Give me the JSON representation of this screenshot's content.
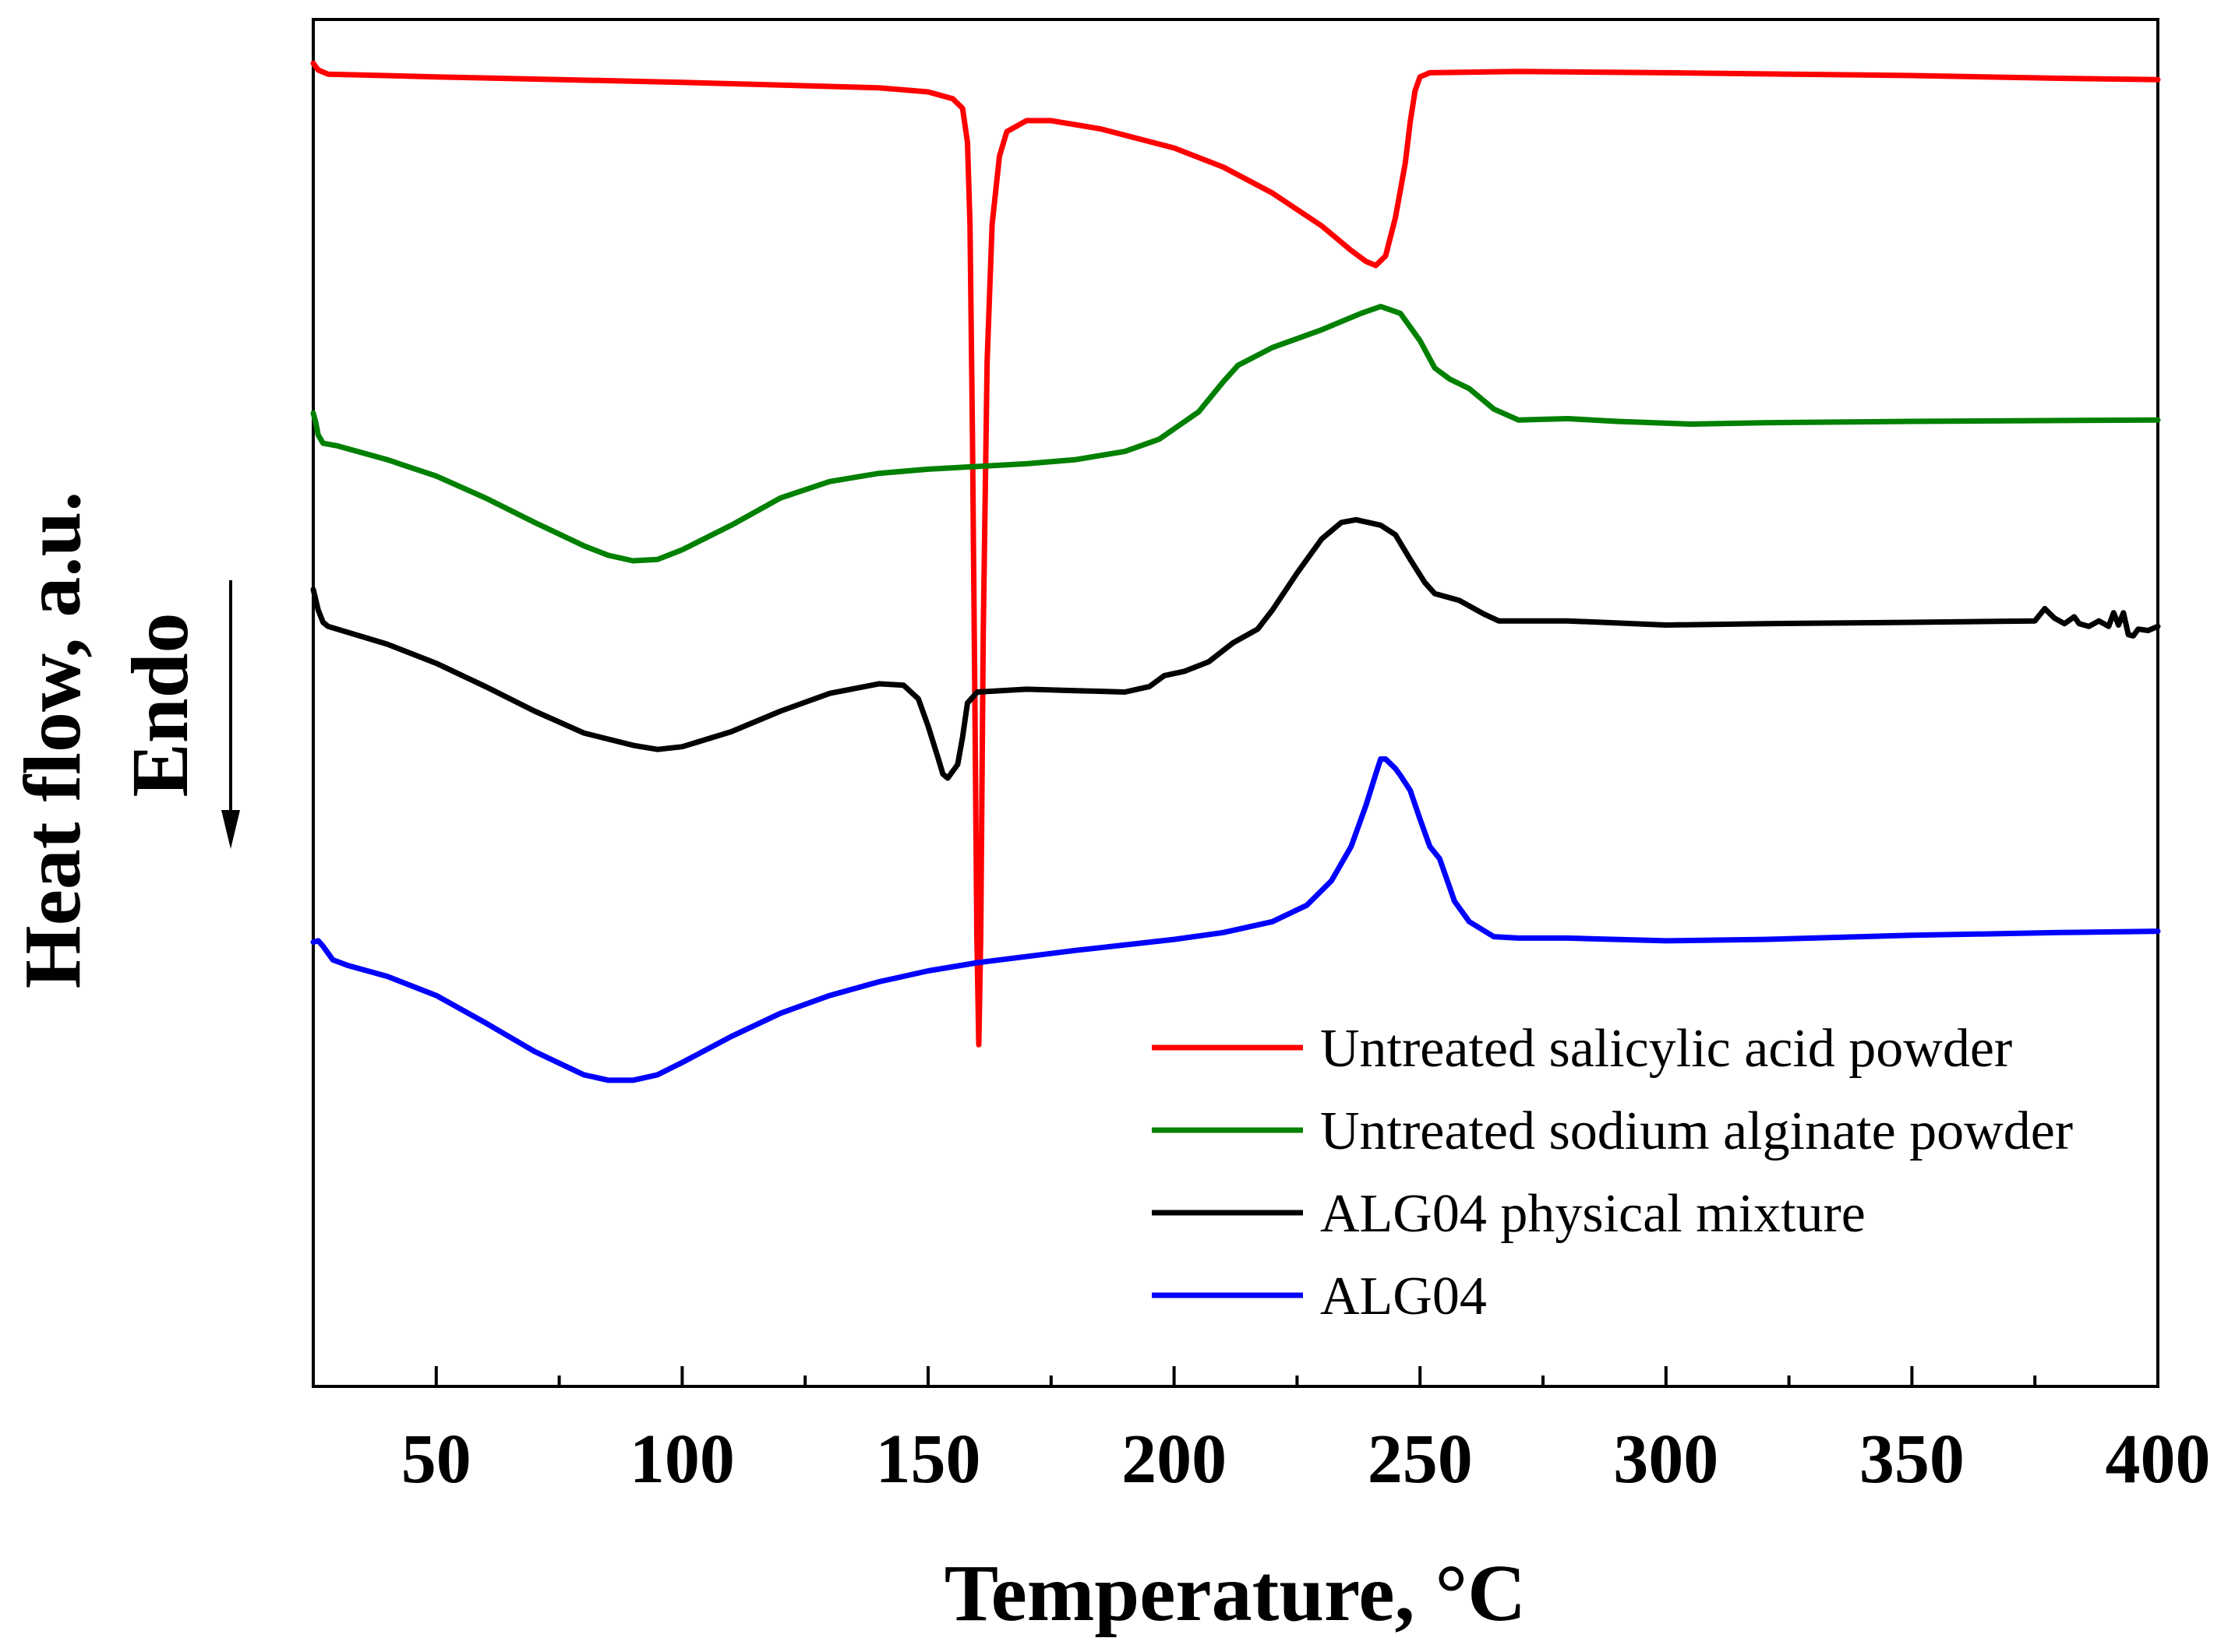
{
  "chart_data": {
    "type": "line",
    "title": "",
    "xlabel": "Temperature, °C",
    "ylabel": "Heat flow, a.u.",
    "ylabel_secondary": "Endo",
    "xlim": [
      25,
      400
    ],
    "xticks": [
      50,
      100,
      150,
      200,
      250,
      300,
      350,
      400
    ],
    "xtick_labels": [
      "50",
      "100",
      "150",
      "200",
      "250",
      "300",
      "350",
      "400"
    ],
    "x_minor_ticks": [
      75,
      125,
      175,
      225,
      275,
      325,
      375
    ],
    "ylim": [
      0,
      100
    ],
    "y_ticks_shown": false,
    "grid": false,
    "legend_position": "bottom-right",
    "endo_arrow": "down",
    "series": [
      {
        "name": "Untreated salicylic acid powder",
        "color": "#ff0000",
        "points": [
          [
            25,
            96.8
          ],
          [
            26,
            96.3
          ],
          [
            28,
            96.0
          ],
          [
            50,
            95.8
          ],
          [
            100,
            95.4
          ],
          [
            140,
            95.0
          ],
          [
            150,
            94.7
          ],
          [
            155,
            94.2
          ],
          [
            157,
            93.5
          ],
          [
            158,
            91.0
          ],
          [
            158.5,
            85.0
          ],
          [
            159,
            70.0
          ],
          [
            159.5,
            50.0
          ],
          [
            159.9,
            33.0
          ],
          [
            160.3,
            25.0
          ],
          [
            160.7,
            33.0
          ],
          [
            161.2,
            55.0
          ],
          [
            162,
            75.0
          ],
          [
            163,
            85.0
          ],
          [
            164.5,
            90.0
          ],
          [
            166,
            91.8
          ],
          [
            170,
            92.6
          ],
          [
            175,
            92.6
          ],
          [
            185,
            92.0
          ],
          [
            200,
            90.6
          ],
          [
            210,
            89.2
          ],
          [
            220,
            87.3
          ],
          [
            230,
            84.9
          ],
          [
            236,
            83.1
          ],
          [
            239,
            82.3
          ],
          [
            241,
            82.0
          ],
          [
            243,
            82.7
          ],
          [
            245,
            85.5
          ],
          [
            247,
            89.5
          ],
          [
            248,
            92.5
          ],
          [
            249,
            94.8
          ],
          [
            250,
            95.8
          ],
          [
            252,
            96.1
          ],
          [
            270,
            96.2
          ],
          [
            300,
            96.1
          ],
          [
            350,
            95.9
          ],
          [
            380,
            95.7
          ],
          [
            400,
            95.6
          ]
        ]
      },
      {
        "name": "Untreated sodium alginate powder",
        "color": "#008000",
        "points": [
          [
            25,
            71.2
          ],
          [
            25.5,
            70.5
          ],
          [
            26,
            69.6
          ],
          [
            27,
            69.0
          ],
          [
            30,
            68.8
          ],
          [
            40,
            67.8
          ],
          [
            50,
            66.6
          ],
          [
            60,
            65.0
          ],
          [
            70,
            63.2
          ],
          [
            80,
            61.5
          ],
          [
            85,
            60.8
          ],
          [
            90,
            60.4
          ],
          [
            95,
            60.5
          ],
          [
            100,
            61.2
          ],
          [
            110,
            63.0
          ],
          [
            120,
            65.0
          ],
          [
            130,
            66.2
          ],
          [
            140,
            66.8
          ],
          [
            150,
            67.1
          ],
          [
            160,
            67.3
          ],
          [
            170,
            67.5
          ],
          [
            180,
            67.8
          ],
          [
            190,
            68.4
          ],
          [
            197,
            69.3
          ],
          [
            205,
            71.3
          ],
          [
            210,
            73.5
          ],
          [
            213,
            74.7
          ],
          [
            220,
            76.0
          ],
          [
            230,
            77.3
          ],
          [
            238,
            78.5
          ],
          [
            242,
            79.0
          ],
          [
            246,
            78.5
          ],
          [
            250,
            76.5
          ],
          [
            253,
            74.5
          ],
          [
            256,
            73.7
          ],
          [
            260,
            73.0
          ],
          [
            265,
            71.5
          ],
          [
            270,
            70.7
          ],
          [
            280,
            70.8
          ],
          [
            290,
            70.6
          ],
          [
            305,
            70.4
          ],
          [
            320,
            70.5
          ],
          [
            350,
            70.6
          ],
          [
            400,
            70.7
          ]
        ]
      },
      {
        "name": "ALG04 physical mixture",
        "color": "#000000",
        "points": [
          [
            25,
            58.3
          ],
          [
            26,
            56.8
          ],
          [
            27,
            55.9
          ],
          [
            28,
            55.6
          ],
          [
            40,
            54.3
          ],
          [
            50,
            52.9
          ],
          [
            60,
            51.2
          ],
          [
            70,
            49.4
          ],
          [
            80,
            47.8
          ],
          [
            90,
            46.9
          ],
          [
            95,
            46.6
          ],
          [
            100,
            46.8
          ],
          [
            110,
            47.9
          ],
          [
            120,
            49.4
          ],
          [
            130,
            50.7
          ],
          [
            140,
            51.4
          ],
          [
            145,
            51.3
          ],
          [
            148,
            50.3
          ],
          [
            150,
            48.3
          ],
          [
            152,
            46.0
          ],
          [
            153,
            44.8
          ],
          [
            154,
            44.5
          ],
          [
            156,
            45.5
          ],
          [
            157,
            47.5
          ],
          [
            158,
            50.0
          ],
          [
            160,
            50.8
          ],
          [
            170,
            51.0
          ],
          [
            180,
            50.9
          ],
          [
            190,
            50.8
          ],
          [
            195,
            51.2
          ],
          [
            198,
            52.0
          ],
          [
            202,
            52.3
          ],
          [
            207,
            53.0
          ],
          [
            212,
            54.4
          ],
          [
            217,
            55.4
          ],
          [
            220,
            56.8
          ],
          [
            225,
            59.5
          ],
          [
            230,
            62.0
          ],
          [
            234,
            63.2
          ],
          [
            237,
            63.4
          ],
          [
            242,
            63.0
          ],
          [
            245,
            62.3
          ],
          [
            248,
            60.5
          ],
          [
            251,
            58.8
          ],
          [
            253,
            58.0
          ],
          [
            258,
            57.5
          ],
          [
            263,
            56.5
          ],
          [
            266,
            56.0
          ],
          [
            270,
            56.0
          ],
          [
            280,
            56.0
          ],
          [
            300,
            55.7
          ],
          [
            320,
            55.8
          ],
          [
            350,
            55.9
          ],
          [
            375,
            56.0
          ],
          [
            377,
            56.9
          ],
          [
            379,
            56.2
          ],
          [
            381,
            55.8
          ],
          [
            383,
            56.3
          ],
          [
            384,
            55.8
          ],
          [
            386,
            55.6
          ],
          [
            388,
            56.0
          ],
          [
            390,
            55.6
          ],
          [
            391,
            56.6
          ],
          [
            392,
            55.7
          ],
          [
            393,
            56.6
          ],
          [
            394,
            55.0
          ],
          [
            395,
            54.9
          ],
          [
            396,
            55.4
          ],
          [
            398,
            55.3
          ],
          [
            400,
            55.6
          ]
        ]
      },
      {
        "name": "ALG04",
        "color": "#0000ff",
        "points": [
          [
            25,
            32.5
          ],
          [
            26,
            32.6
          ],
          [
            27,
            32.2
          ],
          [
            29,
            31.2
          ],
          [
            32,
            30.8
          ],
          [
            40,
            30.0
          ],
          [
            50,
            28.6
          ],
          [
            60,
            26.6
          ],
          [
            70,
            24.5
          ],
          [
            80,
            22.8
          ],
          [
            85,
            22.4
          ],
          [
            90,
            22.4
          ],
          [
            95,
            22.8
          ],
          [
            100,
            23.7
          ],
          [
            110,
            25.6
          ],
          [
            120,
            27.3
          ],
          [
            130,
            28.6
          ],
          [
            140,
            29.6
          ],
          [
            150,
            30.4
          ],
          [
            160,
            31.0
          ],
          [
            180,
            31.9
          ],
          [
            200,
            32.7
          ],
          [
            210,
            33.2
          ],
          [
            220,
            34.0
          ],
          [
            227,
            35.2
          ],
          [
            232,
            37.0
          ],
          [
            236,
            39.5
          ],
          [
            239,
            42.5
          ],
          [
            241,
            44.8
          ],
          [
            242,
            45.9
          ],
          [
            243,
            45.9
          ],
          [
            245,
            45.2
          ],
          [
            246,
            44.7
          ],
          [
            248,
            43.6
          ],
          [
            250,
            41.5
          ],
          [
            252,
            39.5
          ],
          [
            254,
            38.6
          ],
          [
            257,
            35.5
          ],
          [
            260,
            34.0
          ],
          [
            265,
            32.9
          ],
          [
            270,
            32.8
          ],
          [
            280,
            32.8
          ],
          [
            300,
            32.6
          ],
          [
            320,
            32.7
          ],
          [
            350,
            33.0
          ],
          [
            380,
            33.2
          ],
          [
            400,
            33.3
          ]
        ]
      }
    ]
  }
}
